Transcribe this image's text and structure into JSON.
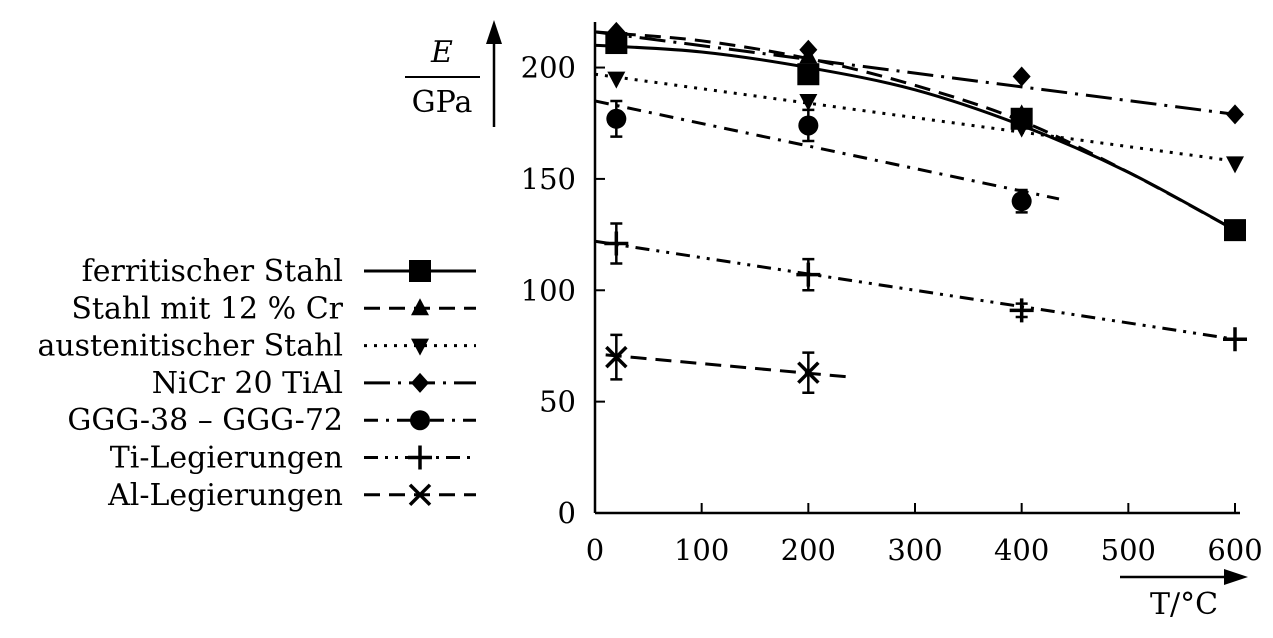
{
  "chart_data": {
    "type": "line",
    "ylabel_num": "E",
    "ylabel_den": "GPa",
    "xlabel": "T/°C",
    "xlim": [
      0,
      600
    ],
    "ylim": [
      0,
      220
    ],
    "xticks": [
      "0",
      "100",
      "200",
      "300",
      "400",
      "500",
      "600"
    ],
    "yticks": [
      "0",
      "50",
      "100",
      "150",
      "200"
    ],
    "grid": false,
    "legend_position": "left",
    "series": [
      {
        "name": "ferritischer Stahl",
        "marker": "square",
        "dash": "solid",
        "x": [
          20,
          200,
          400,
          600
        ],
        "y": [
          211,
          197,
          177,
          127
        ],
        "fit_x": [
          0,
          100,
          200,
          300,
          400,
          500,
          600
        ],
        "fit_y": [
          210,
          207,
          200,
          190,
          174,
          153,
          127
        ]
      },
      {
        "name": "Stahl mit 12 % Cr",
        "marker": "triangle-up",
        "dash": "dashed",
        "x": [
          20,
          200,
          400
        ],
        "y": [
          215,
          205,
          179
        ],
        "fit_x": [
          0,
          100,
          200,
          300,
          400,
          500,
          600
        ],
        "fit_y": [
          216,
          212,
          204,
          192,
          176,
          153,
          127
        ]
      },
      {
        "name": "austenitischer Stahl",
        "marker": "triangle-down",
        "dash": "dotted",
        "x": [
          20,
          200,
          400,
          600
        ],
        "y": [
          195,
          185,
          173,
          157
        ],
        "fit_x": [
          0,
          600
        ],
        "fit_y": [
          197,
          158
        ]
      },
      {
        "name": "NiCr 20 TiAl",
        "marker": "diamond",
        "dash": "long-dash-dot",
        "x": [
          20,
          200,
          400,
          600
        ],
        "y": [
          216,
          208,
          196,
          179
        ],
        "fit_x": [
          0,
          600
        ],
        "fit_y": [
          216,
          179
        ]
      },
      {
        "name": "GGG-38 – GGG-72",
        "marker": "circle",
        "dash": "dash-dot",
        "x": [
          20,
          200,
          400
        ],
        "y": [
          177,
          174,
          140
        ],
        "yerr": [
          8,
          7,
          5
        ],
        "fit_x": [
          0,
          435
        ],
        "fit_y": [
          185,
          141
        ]
      },
      {
        "name": "Ti-Legierungen",
        "marker": "plus",
        "dash": "dash-dot-dot",
        "x": [
          20,
          200,
          400,
          600
        ],
        "y": [
          121,
          107,
          91,
          78
        ],
        "yerr": [
          9,
          7,
          3,
          2
        ],
        "fit_x": [
          0,
          600
        ],
        "fit_y": [
          122,
          78
        ]
      },
      {
        "name": "Al-Legierungen",
        "marker": "cross",
        "dash": "dashed",
        "x": [
          20,
          200
        ],
        "y": [
          70,
          63
        ],
        "yerr": [
          10,
          9
        ],
        "fit_x": [
          10,
          240
        ],
        "fit_y": [
          71,
          61
        ]
      }
    ]
  }
}
